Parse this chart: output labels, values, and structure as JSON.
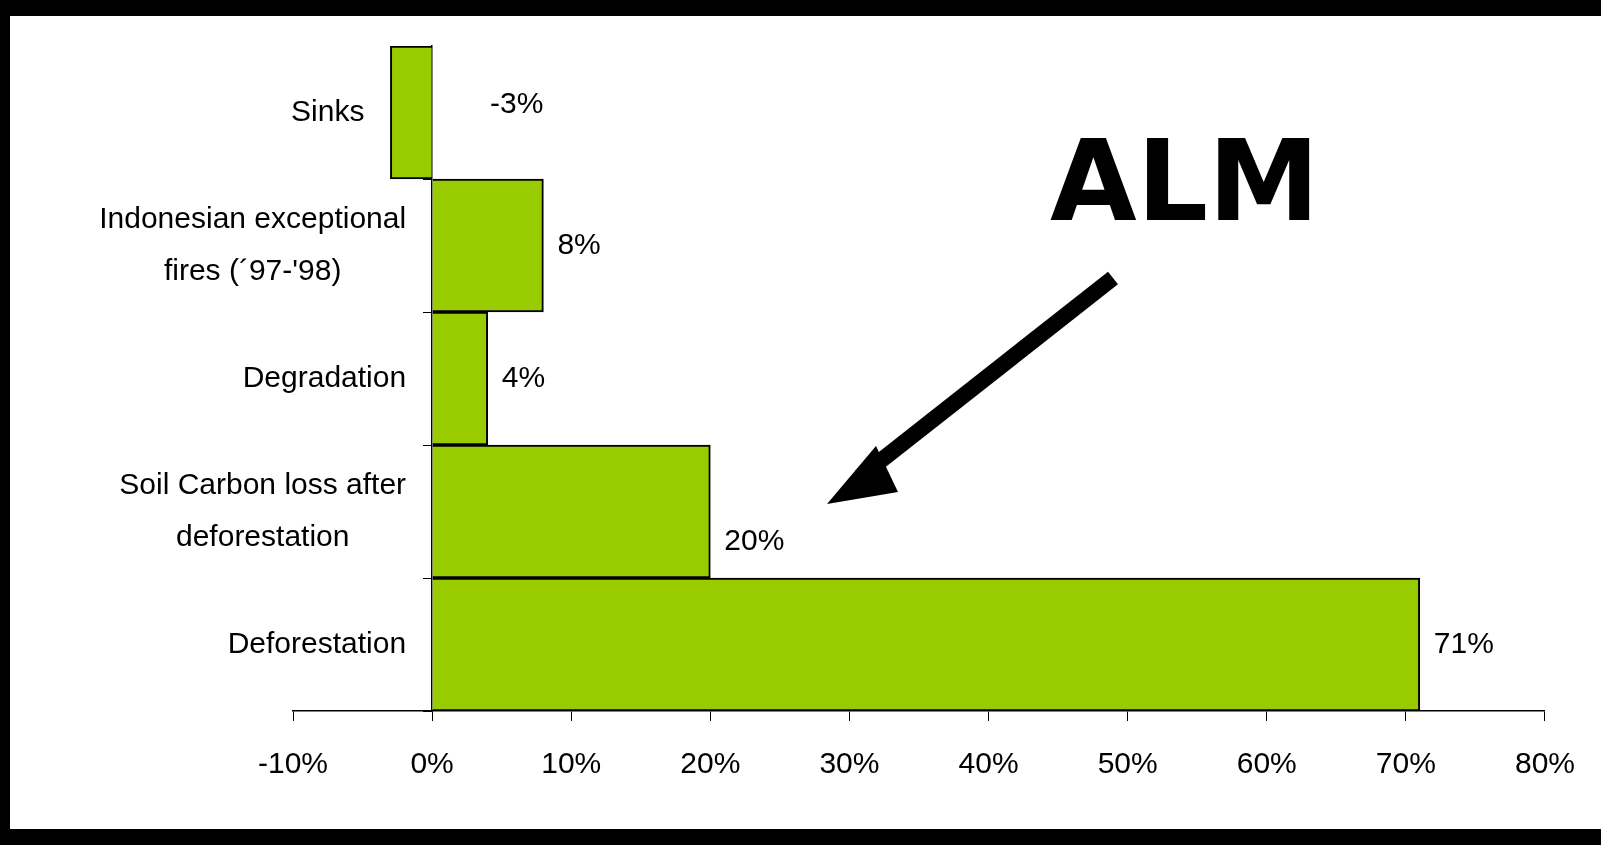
{
  "chart_data": {
    "type": "bar",
    "orientation": "horizontal",
    "categories": [
      "Sinks",
      "Indonesian exceptional fires (´97-'98)",
      "Degradation",
      "Soil Carbon loss after deforestation",
      "Deforestation"
    ],
    "values": [
      -3,
      8,
      4,
      20,
      71
    ],
    "value_labels": [
      "-3%",
      "8%",
      "4%",
      "20%",
      "71%"
    ],
    "color": "#99cc00",
    "xlim": [
      -10,
      80
    ],
    "xticks": [
      {
        "value": -10,
        "label": "-10%"
      },
      {
        "value": 0,
        "label": "0%"
      },
      {
        "value": 10,
        "label": "10%"
      },
      {
        "value": 20,
        "label": "20%"
      },
      {
        "value": 30,
        "label": "30%"
      },
      {
        "value": 40,
        "label": "40%"
      },
      {
        "value": 50,
        "label": "50%"
      },
      {
        "value": 60,
        "label": "60%"
      },
      {
        "value": 70,
        "label": "70%"
      },
      {
        "value": 80,
        "label": "80%"
      }
    ],
    "grid": false,
    "legend": false,
    "annotations": [
      "ALM"
    ]
  }
}
